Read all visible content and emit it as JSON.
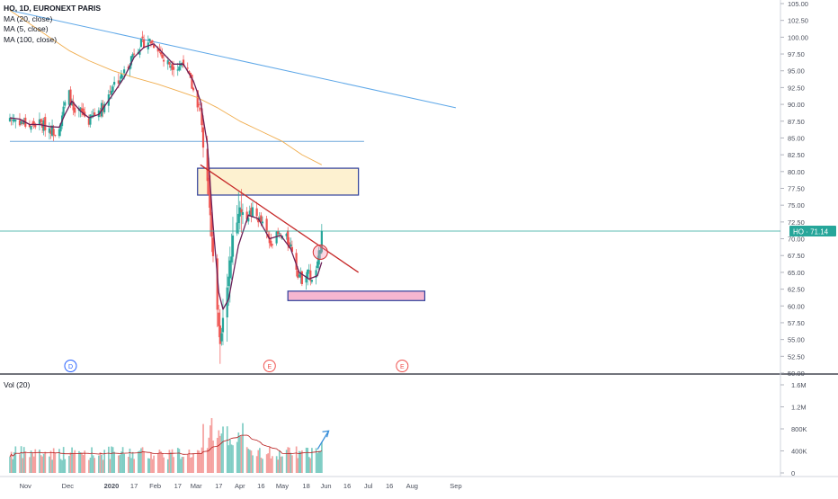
{
  "header": {
    "symbol_line": "HO, 1D, EURONEXT PARIS",
    "ma_labels": [
      "MA (20, close)",
      "MA (5, close)",
      "MA (100, close)"
    ],
    "volume_label": "Vol (20)"
  },
  "price_badge": {
    "label": "HO",
    "value": "71.14"
  },
  "chart_data": {
    "type": "candlestick",
    "symbol": "HO",
    "interval": "1D",
    "exchange": "EURONEXT PARIS",
    "last_price": 71.14,
    "x_ticks": [
      "Nov",
      "Dec",
      "2020",
      "17",
      "Feb",
      "17",
      "Mar",
      "17",
      "Apr",
      "16",
      "May",
      "18",
      "Jun",
      "16",
      "Jul",
      "16",
      "Aug",
      "Sep"
    ],
    "y_ticks": [
      "105.00",
      "102.50",
      "100.00",
      "97.50",
      "95.00",
      "92.50",
      "90.00",
      "87.50",
      "85.00",
      "82.50",
      "80.00",
      "77.50",
      "75.00",
      "72.50",
      "70.00",
      "67.50",
      "65.00",
      "62.50",
      "60.00",
      "57.50",
      "55.00",
      "52.50",
      "50.00"
    ],
    "ylim": [
      50,
      105
    ],
    "volume_ticks": [
      "1.6M",
      "1.2M",
      "800K",
      "400K",
      "0"
    ],
    "volume_ylim": [
      0,
      1600000
    ],
    "event_markers": [
      "D",
      "E",
      "E"
    ],
    "close_path": [
      {
        "date": "2019-10-21",
        "close": 88.0
      },
      {
        "date": "2019-10-28",
        "close": 87.5
      },
      {
        "date": "2019-11-04",
        "close": 86.8
      },
      {
        "date": "2019-11-11",
        "close": 87.2
      },
      {
        "date": "2019-11-18",
        "close": 86.5
      },
      {
        "date": "2019-11-22",
        "close": 86.0
      },
      {
        "date": "2019-11-25",
        "close": 87.0
      },
      {
        "date": "2019-11-29",
        "close": 90.0
      },
      {
        "date": "2019-12-02",
        "close": 91.5
      },
      {
        "date": "2019-12-06",
        "close": 88.0
      },
      {
        "date": "2019-12-10",
        "close": 89.0
      },
      {
        "date": "2019-12-16",
        "close": 87.5
      },
      {
        "date": "2019-12-20",
        "close": 88.5
      },
      {
        "date": "2019-12-27",
        "close": 90.0
      },
      {
        "date": "2020-01-02",
        "close": 93.0
      },
      {
        "date": "2020-01-08",
        "close": 94.0
      },
      {
        "date": "2020-01-13",
        "close": 96.0
      },
      {
        "date": "2020-01-17",
        "close": 98.0
      },
      {
        "date": "2020-01-22",
        "close": 99.0
      },
      {
        "date": "2020-01-28",
        "close": 99.5
      },
      {
        "date": "2020-02-03",
        "close": 98.5
      },
      {
        "date": "2020-02-07",
        "close": 96.5
      },
      {
        "date": "2020-02-12",
        "close": 96.0
      },
      {
        "date": "2020-02-17",
        "close": 95.5
      },
      {
        "date": "2020-02-21",
        "close": 96.5
      },
      {
        "date": "2020-02-25",
        "close": 94.0
      },
      {
        "date": "2020-02-28",
        "close": 92.0
      },
      {
        "date": "2020-03-04",
        "close": 89.0
      },
      {
        "date": "2020-03-06",
        "close": 84.0
      },
      {
        "date": "2020-03-09",
        "close": 79.0
      },
      {
        "date": "2020-03-12",
        "close": 70.0
      },
      {
        "date": "2020-03-16",
        "close": 60.0
      },
      {
        "date": "2020-03-18",
        "close": 55.0
      },
      {
        "date": "2020-03-20",
        "close": 58.0
      },
      {
        "date": "2020-03-24",
        "close": 64.0
      },
      {
        "date": "2020-03-27",
        "close": 70.0
      },
      {
        "date": "2020-04-01",
        "close": 75.0
      },
      {
        "date": "2020-04-06",
        "close": 73.5
      },
      {
        "date": "2020-04-10",
        "close": 74.0
      },
      {
        "date": "2020-04-16",
        "close": 72.5
      },
      {
        "date": "2020-04-22",
        "close": 69.5
      },
      {
        "date": "2020-04-28",
        "close": 70.5
      },
      {
        "date": "2020-05-04",
        "close": 70.0
      },
      {
        "date": "2020-05-08",
        "close": 68.5
      },
      {
        "date": "2020-05-12",
        "close": 65.0
      },
      {
        "date": "2020-05-15",
        "close": 64.0
      },
      {
        "date": "2020-05-19",
        "close": 65.5
      },
      {
        "date": "2020-05-22",
        "close": 63.5
      },
      {
        "date": "2020-05-26",
        "close": 66.0
      },
      {
        "date": "2020-05-28",
        "close": 69.0
      },
      {
        "date": "2020-05-29",
        "close": 71.14
      }
    ],
    "ma20_path": [
      {
        "date": "2019-10-21",
        "value": 100.0
      },
      {
        "date": "2019-10-28",
        "value": 94.0
      },
      {
        "date": "2019-11-04",
        "value": 89.0
      },
      {
        "date": "2019-11-11",
        "value": 87.5
      },
      {
        "date": "2019-11-18",
        "value": 87.0
      },
      {
        "date": "2019-11-25",
        "value": 86.8
      },
      {
        "date": "2019-12-02",
        "value": 87.5
      },
      {
        "date": "2019-12-10",
        "value": 88.0
      },
      {
        "date": "2019-12-16",
        "value": 88.5
      },
      {
        "date": "2019-12-23",
        "value": 88.3
      },
      {
        "date": "2020-01-02",
        "value": 89.0
      },
      {
        "date": "2020-01-13",
        "value": 93.0
      },
      {
        "date": "2020-01-20",
        "value": 96.0
      },
      {
        "date": "2020-01-28",
        "value": 98.5
      },
      {
        "date": "2020-02-05",
        "value": 98.5
      },
      {
        "date": "2020-02-12",
        "value": 97.5
      },
      {
        "date": "2020-02-19",
        "value": 96.5
      },
      {
        "date": "2020-02-26",
        "value": 95.5
      },
      {
        "date": "2020-03-04",
        "value": 92.0
      },
      {
        "date": "2020-03-09",
        "value": 87.0
      },
      {
        "date": "2020-03-13",
        "value": 80.0
      },
      {
        "date": "2020-03-18",
        "value": 70.0
      },
      {
        "date": "2020-03-24",
        "value": 63.5
      },
      {
        "date": "2020-03-31",
        "value": 62.0
      },
      {
        "date": "2020-04-07",
        "value": 66.0
      },
      {
        "date": "2020-04-14",
        "value": 70.0
      },
      {
        "date": "2020-04-22",
        "value": 71.5
      },
      {
        "date": "2020-04-30",
        "value": 71.0
      },
      {
        "date": "2020-05-07",
        "value": 69.5
      },
      {
        "date": "2020-05-14",
        "value": 67.5
      },
      {
        "date": "2020-05-21",
        "value": 66.0
      },
      {
        "date": "2020-05-29",
        "value": 66.5
      }
    ],
    "ma5_path": [
      {
        "date": "2019-10-21",
        "value": 88.0
      },
      {
        "date": "2019-10-28",
        "value": 87.8
      },
      {
        "date": "2019-11-04",
        "value": 87.0
      },
      {
        "date": "2019-11-11",
        "value": 87.0
      },
      {
        "date": "2019-11-18",
        "value": 86.7
      },
      {
        "date": "2019-11-25",
        "value": 86.6
      },
      {
        "date": "2019-11-29",
        "value": 88.5
      },
      {
        "date": "2019-12-04",
        "value": 90.5
      },
      {
        "date": "2019-12-10",
        "value": 89.0
      },
      {
        "date": "2019-12-16",
        "value": 88.0
      },
      {
        "date": "2019-12-23",
        "value": 88.5
      },
      {
        "date": "2020-01-02",
        "value": 91.5
      },
      {
        "date": "2020-01-10",
        "value": 94.0
      },
      {
        "date": "2020-01-17",
        "value": 97.0
      },
      {
        "date": "2020-01-24",
        "value": 98.5
      },
      {
        "date": "2020-01-31",
        "value": 99.0
      },
      {
        "date": "2020-02-07",
        "value": 97.5
      },
      {
        "date": "2020-02-14",
        "value": 96.0
      },
      {
        "date": "2020-02-21",
        "value": 96.0
      },
      {
        "date": "2020-02-28",
        "value": 93.5
      },
      {
        "date": "2020-03-04",
        "value": 90.5
      },
      {
        "date": "2020-03-09",
        "value": 84.0
      },
      {
        "date": "2020-03-13",
        "value": 72.0
      },
      {
        "date": "2020-03-17",
        "value": 62.0
      },
      {
        "date": "2020-03-20",
        "value": 59.5
      },
      {
        "date": "2020-03-24",
        "value": 61.0
      },
      {
        "date": "2020-03-31",
        "value": 69.0
      },
      {
        "date": "2020-04-07",
        "value": 73.5
      },
      {
        "date": "2020-04-14",
        "value": 73.0
      },
      {
        "date": "2020-04-22",
        "value": 70.0
      },
      {
        "date": "2020-04-30",
        "value": 70.5
      },
      {
        "date": "2020-05-07",
        "value": 68.5
      },
      {
        "date": "2020-05-13",
        "value": 65.0
      },
      {
        "date": "2020-05-20",
        "value": 64.0
      },
      {
        "date": "2020-05-26",
        "value": 64.5
      },
      {
        "date": "2020-05-29",
        "value": 66.5
      }
    ],
    "ma100_path": [
      {
        "date": "2019-10-21",
        "value": 104.0
      },
      {
        "date": "2019-11-04",
        "value": 102.0
      },
      {
        "date": "2019-11-18",
        "value": 100.0
      },
      {
        "date": "2019-12-02",
        "value": 98.0
      },
      {
        "date": "2019-12-16",
        "value": 96.5
      },
      {
        "date": "2020-01-02",
        "value": 95.0
      },
      {
        "date": "2020-01-17",
        "value": 94.0
      },
      {
        "date": "2020-02-03",
        "value": 93.0
      },
      {
        "date": "2020-02-17",
        "value": 92.0
      },
      {
        "date": "2020-03-02",
        "value": 91.0
      },
      {
        "date": "2020-03-16",
        "value": 89.5
      },
      {
        "date": "2020-04-01",
        "value": 87.5
      },
      {
        "date": "2020-04-16",
        "value": 86.0
      },
      {
        "date": "2020-05-01",
        "value": 84.5
      },
      {
        "date": "2020-05-15",
        "value": 82.5
      },
      {
        "date": "2020-05-29",
        "value": 81.0
      }
    ],
    "drawings": {
      "long_trendline": [
        {
          "date": "2019-10-21",
          "value": 104.0
        },
        {
          "date": "2020-09-01",
          "value": 89.5
        }
      ],
      "short_trendline": [
        {
          "date": "2020-03-04",
          "value": 81.0
        },
        {
          "date": "2020-06-24",
          "value": 65.0
        }
      ],
      "horizontal_line": {
        "value": 84.5,
        "from": "2019-10-21",
        "to": "2020-06-28"
      },
      "resistance_zone": {
        "from": "2020-03-02",
        "to": "2020-06-24",
        "low": 76.5,
        "high": 80.5
      },
      "support_zone": {
        "from": "2020-05-05",
        "to": "2020-08-10",
        "low": 60.8,
        "high": 62.2
      },
      "circle_marker": {
        "date": "2020-05-28",
        "value": 68.0
      },
      "arrow": {
        "from": {
          "date": "2020-05-26",
          "volume": 430000
        },
        "to": {
          "date": "2020-06-01",
          "volume": 600000
        }
      }
    },
    "colors": {
      "up": "#26a69a",
      "down": "#ef5350",
      "up_volume": "#7fcdc4",
      "down_volume": "#f5a19f",
      "ma20": "#e8b35f",
      "ma5": "#6b1f57",
      "ma100": "#f0ad4e",
      "trendline_long": "#5fa8e8",
      "trendline_short": "#c62828",
      "horizontal_line": "#6fa8dc",
      "resistance_fill": "#fdf1d0",
      "support_fill": "#f6b6d0",
      "zone_border": "#2d3e9a",
      "arrow": "#3a8fd9",
      "last_price_line": "#26a69a"
    }
  }
}
